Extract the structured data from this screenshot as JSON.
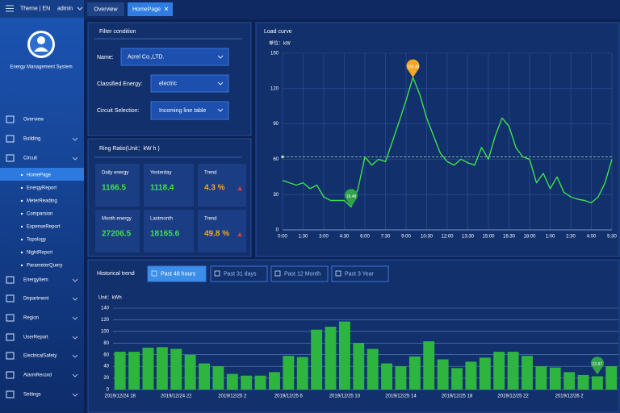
{
  "header": {
    "theme": "Theme | EN",
    "user": "admin"
  },
  "sidebar": {
    "system_name": "Energy Management System",
    "menu_top": [
      "Overview",
      "Building",
      "Circuit"
    ],
    "submenu": [
      "HomePage",
      "EnergyReport",
      "MeterReading",
      "Comparsion",
      "ExpenseReport",
      "Topology",
      "NightReport",
      "ParameterQuery"
    ],
    "menu_bottom": [
      "EnergyItem",
      "Department",
      "Region",
      "UserReport",
      "ElectricalSafety",
      "AlarmRecord",
      "Settings"
    ]
  },
  "tabs": [
    "Overview",
    "HomePage"
  ],
  "filter": {
    "title": "Filter condition",
    "fields": [
      {
        "label": "Name:",
        "value": "Acrel Co.,LTD."
      },
      {
        "label": "Classified Energy:",
        "value": "electric"
      },
      {
        "label": "Circuit Selection:",
        "value": "Incoming line table"
      }
    ]
  },
  "ring_ratio": {
    "title": "Ring Ratio(Unit：kW h )",
    "cells": [
      [
        {
          "label": "Daily energy",
          "value": "1166.5"
        },
        {
          "label": "Yesterday",
          "value": "1118.4"
        },
        {
          "label": "Trend",
          "value": "4.3 %"
        }
      ],
      [
        {
          "label": "Month energy",
          "value": "27206.5"
        },
        {
          "label": "Lastmonth",
          "value": "18165.6"
        },
        {
          "label": "Trend",
          "value": "49.8 %"
        }
      ]
    ]
  },
  "history": {
    "buttons": [
      "Past 48 hours",
      "Past 31 days",
      "Past 12 Month",
      "Past 3 Year"
    ]
  },
  "chart_data": [
    {
      "type": "line",
      "title": "Load curve",
      "y_label": "单位：kW",
      "categories": [
        "0:00",
        null,
        null,
        "1:30",
        null,
        null,
        "3:00",
        null,
        null,
        "4:30",
        null,
        null,
        "6:00",
        null,
        null,
        "7:30",
        null,
        null,
        "9:00",
        null,
        null,
        "10:30",
        null,
        null,
        "12:00",
        null,
        null,
        "13:30",
        null,
        null,
        "15:00",
        null,
        null,
        "16:30",
        null,
        null,
        "18:00",
        null,
        null,
        "1:00",
        null,
        null,
        "2:30",
        null,
        null,
        "4:00",
        null,
        null,
        "5:30"
      ],
      "values": [
        42,
        40,
        38,
        40,
        35,
        38,
        28,
        25,
        25,
        25,
        19.48,
        35,
        62,
        55,
        60,
        58,
        75,
        92,
        110,
        129.48,
        115,
        95,
        80,
        65,
        58,
        55,
        60,
        57,
        55,
        70,
        60,
        80,
        95,
        88,
        70,
        62,
        60,
        40,
        48,
        35,
        45,
        32,
        28,
        26,
        25,
        23,
        28,
        40,
        60
      ],
      "color": "#3fe04a",
      "ylim": [
        0,
        150
      ],
      "yticks": [
        0,
        30,
        60,
        90,
        120,
        150
      ],
      "grid": true,
      "average_line": 62,
      "mark_points": [
        "min",
        "max"
      ],
      "mark_point_colors": {
        "min": "#2fa24a",
        "max": "#f5a623"
      }
    },
    {
      "type": "bar",
      "title": "Historical trend",
      "y_label": "Unit：kWh",
      "categories": [
        "2019/12/24 18",
        null,
        null,
        null,
        "2019/12/24 22",
        null,
        null,
        null,
        "2019/12/25 2",
        null,
        null,
        null,
        "2019/12/25 6",
        null,
        null,
        null,
        "2019/12/25 10",
        null,
        null,
        null,
        "2019/12/25 14",
        null,
        null,
        null,
        "2019/12/25 18",
        null,
        null,
        null,
        "2019/12/25 22",
        null,
        null,
        null,
        "2019/12/26 2",
        null,
        null,
        null
      ],
      "values": [
        65,
        65,
        72,
        73,
        70,
        60,
        45,
        40,
        27,
        24,
        24,
        30,
        58,
        56,
        103,
        108,
        117,
        80,
        70,
        45,
        40,
        57,
        83,
        52,
        37,
        48,
        55,
        65,
        65,
        58,
        40,
        38,
        30,
        25,
        22.87,
        40
      ],
      "color": "#2db53f",
      "ylim": [
        0,
        140
      ],
      "yticks": [
        0,
        20,
        40,
        60,
        80,
        100,
        120,
        140
      ],
      "grid": true,
      "mark_points": [
        "min"
      ],
      "mark_point_colors": {
        "min": "#2fa24a"
      }
    }
  ]
}
